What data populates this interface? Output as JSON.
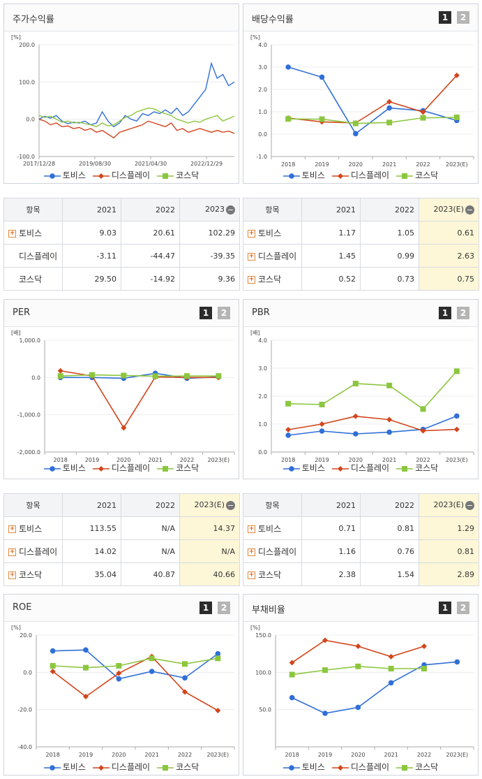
{
  "colors": {
    "tovis": "#2f6fd6",
    "display": "#d2451c",
    "kosdaq": "#8cc63f"
  },
  "legend": [
    "토비스",
    "디스플레이",
    "코스닥"
  ],
  "pager": {
    "p1": "1",
    "p2": "2"
  },
  "panels": {
    "stock": {
      "title": "주가수익률"
    },
    "dividend": {
      "title": "배당수익률"
    },
    "per": {
      "title": "PER"
    },
    "pbr": {
      "title": "PBR"
    },
    "roe": {
      "title": "ROE"
    },
    "debt": {
      "title": "부채비율"
    }
  },
  "tables": {
    "stock": {
      "header": [
        "항목",
        "2021",
        "2022",
        "2023"
      ],
      "rows": [
        {
          "label": "토비스",
          "plus": true,
          "values": [
            "9.03",
            "20.61",
            "102.29"
          ]
        },
        {
          "label": "디스플레이",
          "plus": false,
          "values": [
            "-3.11",
            "-44.47",
            "-39.35"
          ]
        },
        {
          "label": "코스닥",
          "plus": false,
          "values": [
            "29.50",
            "-14.92",
            "9.36"
          ]
        }
      ]
    },
    "dividend": {
      "header": [
        "항목",
        "2021",
        "2022",
        "2023(E)"
      ],
      "rows": [
        {
          "label": "토비스",
          "plus": true,
          "values": [
            "1.17",
            "1.05",
            "0.61"
          ]
        },
        {
          "label": "디스플레이",
          "plus": true,
          "values": [
            "1.45",
            "0.99",
            "2.63"
          ]
        },
        {
          "label": "코스닥",
          "plus": true,
          "values": [
            "0.52",
            "0.73",
            "0.75"
          ]
        }
      ]
    },
    "per": {
      "header": [
        "항목",
        "2021",
        "2022",
        "2023(E)"
      ],
      "rows": [
        {
          "label": "토비스",
          "plus": true,
          "values": [
            "113.55",
            "N/A",
            "14.37"
          ]
        },
        {
          "label": "디스플레이",
          "plus": true,
          "values": [
            "14.02",
            "N/A",
            "N/A"
          ]
        },
        {
          "label": "코스닥",
          "plus": true,
          "values": [
            "35.04",
            "40.87",
            "40.66"
          ]
        }
      ]
    },
    "pbr": {
      "header": [
        "항목",
        "2021",
        "2022",
        "2023(E)"
      ],
      "rows": [
        {
          "label": "토비스",
          "plus": true,
          "values": [
            "0.71",
            "0.81",
            "1.29"
          ]
        },
        {
          "label": "디스플레이",
          "plus": true,
          "values": [
            "1.16",
            "0.76",
            "0.81"
          ]
        },
        {
          "label": "코스닥",
          "plus": true,
          "values": [
            "2.38",
            "1.54",
            "2.89"
          ]
        }
      ]
    }
  },
  "chart_data": [
    {
      "id": "stock",
      "type": "line",
      "title": "주가수익률",
      "ylabel": "[%]",
      "ylim": [
        -100,
        200
      ],
      "yticks": [
        "200.0",
        "100.0",
        "0.0",
        "-100.0"
      ],
      "xtick_labels": [
        "2017/12/28",
        "2019/08/30",
        "2021/04/30",
        "2022/12/29"
      ],
      "series": [
        {
          "name": "토비스",
          "values": [
            0,
            8,
            3,
            10,
            -5,
            -12,
            -8,
            -10,
            -5,
            -15,
            -10,
            20,
            -5,
            -20,
            -10,
            10,
            0,
            -5,
            15,
            10,
            20,
            15,
            25,
            15,
            30,
            10,
            20,
            40,
            60,
            80,
            150,
            110,
            120,
            90,
            100
          ]
        },
        {
          "name": "디스플레이",
          "values": [
            0,
            -5,
            -15,
            -10,
            -20,
            -18,
            -25,
            -22,
            -30,
            -25,
            -35,
            -30,
            -40,
            -50,
            -35,
            -30,
            -25,
            -20,
            -15,
            -5,
            -10,
            -15,
            -20,
            -10,
            -30,
            -25,
            -35,
            -30,
            -25,
            -30,
            -35,
            -30,
            -35,
            -32,
            -38
          ]
        },
        {
          "name": "코스닥",
          "values": [
            10,
            5,
            8,
            0,
            -8,
            -5,
            -10,
            -8,
            -12,
            -15,
            -20,
            -10,
            -18,
            -15,
            -5,
            5,
            10,
            20,
            25,
            30,
            28,
            20,
            15,
            10,
            0,
            -5,
            -10,
            -5,
            -8,
            0,
            5,
            10,
            -5,
            2,
            8
          ]
        }
      ]
    },
    {
      "id": "dividend",
      "type": "line",
      "title": "배당수익률",
      "ylabel": "[%]",
      "ylim": [
        -1,
        4
      ],
      "yticks": [
        "4.0",
        "3.0",
        "2.0",
        "1.0",
        "0.0",
        "-1.0"
      ],
      "categories": [
        "2018",
        "2019",
        "2020",
        "2021",
        "2022",
        "2023(E)"
      ],
      "series": [
        {
          "name": "토비스",
          "values": [
            3.0,
            2.55,
            0.02,
            1.17,
            1.05,
            0.61
          ]
        },
        {
          "name": "디스플레이",
          "values": [
            0.72,
            0.55,
            0.5,
            1.45,
            0.99,
            2.63
          ]
        },
        {
          "name": "코스닥",
          "values": [
            0.68,
            0.67,
            0.48,
            0.52,
            0.73,
            0.75
          ]
        }
      ]
    },
    {
      "id": "per",
      "type": "line",
      "title": "PER",
      "ylabel": "[배]",
      "ylim": [
        -2000,
        1000
      ],
      "yticks": [
        "1,000.0",
        "0.0",
        "-1,000.0",
        "-2,000.0"
      ],
      "categories": [
        "2018",
        "2019",
        "2020",
        "2021",
        "2022",
        "2023(E)"
      ],
      "series": [
        {
          "name": "토비스",
          "values": [
            0,
            0,
            -20,
            113.55,
            -20,
            14.37
          ]
        },
        {
          "name": "디스플레이",
          "values": [
            180,
            40,
            -1350,
            14.02,
            0,
            0
          ]
        },
        {
          "name": "코스닥",
          "values": [
            40,
            70,
            55,
            35.04,
            40.87,
            40.66
          ]
        }
      ]
    },
    {
      "id": "pbr",
      "type": "line",
      "title": "PBR",
      "ylabel": "[배]",
      "ylim": [
        0,
        4
      ],
      "yticks": [
        "4.0",
        "3.0",
        "2.0",
        "1.0",
        "0.0"
      ],
      "categories": [
        "2018",
        "2019",
        "2020",
        "2021",
        "2022",
        "2023(E)"
      ],
      "series": [
        {
          "name": "토비스",
          "values": [
            0.6,
            0.75,
            0.65,
            0.71,
            0.81,
            1.29
          ]
        },
        {
          "name": "디스플레이",
          "values": [
            0.8,
            1.0,
            1.28,
            1.16,
            0.76,
            0.81
          ]
        },
        {
          "name": "코스닥",
          "values": [
            1.73,
            1.7,
            2.45,
            2.38,
            1.54,
            2.89
          ]
        }
      ]
    },
    {
      "id": "roe",
      "type": "line",
      "title": "ROE",
      "ylabel": "[%]",
      "ylim": [
        -40,
        20
      ],
      "yticks": [
        "20.0",
        "0.0",
        "-20.0",
        "-40.0"
      ],
      "categories": [
        "2018",
        "2019",
        "2020",
        "2021",
        "2022",
        "2023(E)"
      ],
      "series": [
        {
          "name": "토비스",
          "values": [
            11.5,
            12,
            -3.5,
            0.5,
            -3,
            10
          ]
        },
        {
          "name": "디스플레이",
          "values": [
            0.5,
            -13,
            -0.5,
            8.5,
            -10.5,
            -20.5
          ]
        },
        {
          "name": "코스닥",
          "values": [
            3.5,
            2.5,
            3.5,
            7.5,
            4.5,
            7.5
          ]
        }
      ]
    },
    {
      "id": "debt",
      "type": "line",
      "title": "부채비율",
      "ylabel": "[%]",
      "ylim": [
        0,
        150
      ],
      "yticks": [
        "150.0",
        "100.0",
        "50.0"
      ],
      "categories": [
        "2018",
        "2019",
        "2020",
        "2021",
        "2022",
        "2023(E)"
      ],
      "series": [
        {
          "name": "토비스",
          "values": [
            66,
            45,
            53,
            86,
            110,
            114
          ]
        },
        {
          "name": "디스플레이",
          "values": [
            113,
            143,
            135,
            121,
            135,
            null
          ]
        },
        {
          "name": "코스닥",
          "values": [
            97,
            103,
            108,
            105,
            105,
            null
          ]
        }
      ]
    }
  ]
}
